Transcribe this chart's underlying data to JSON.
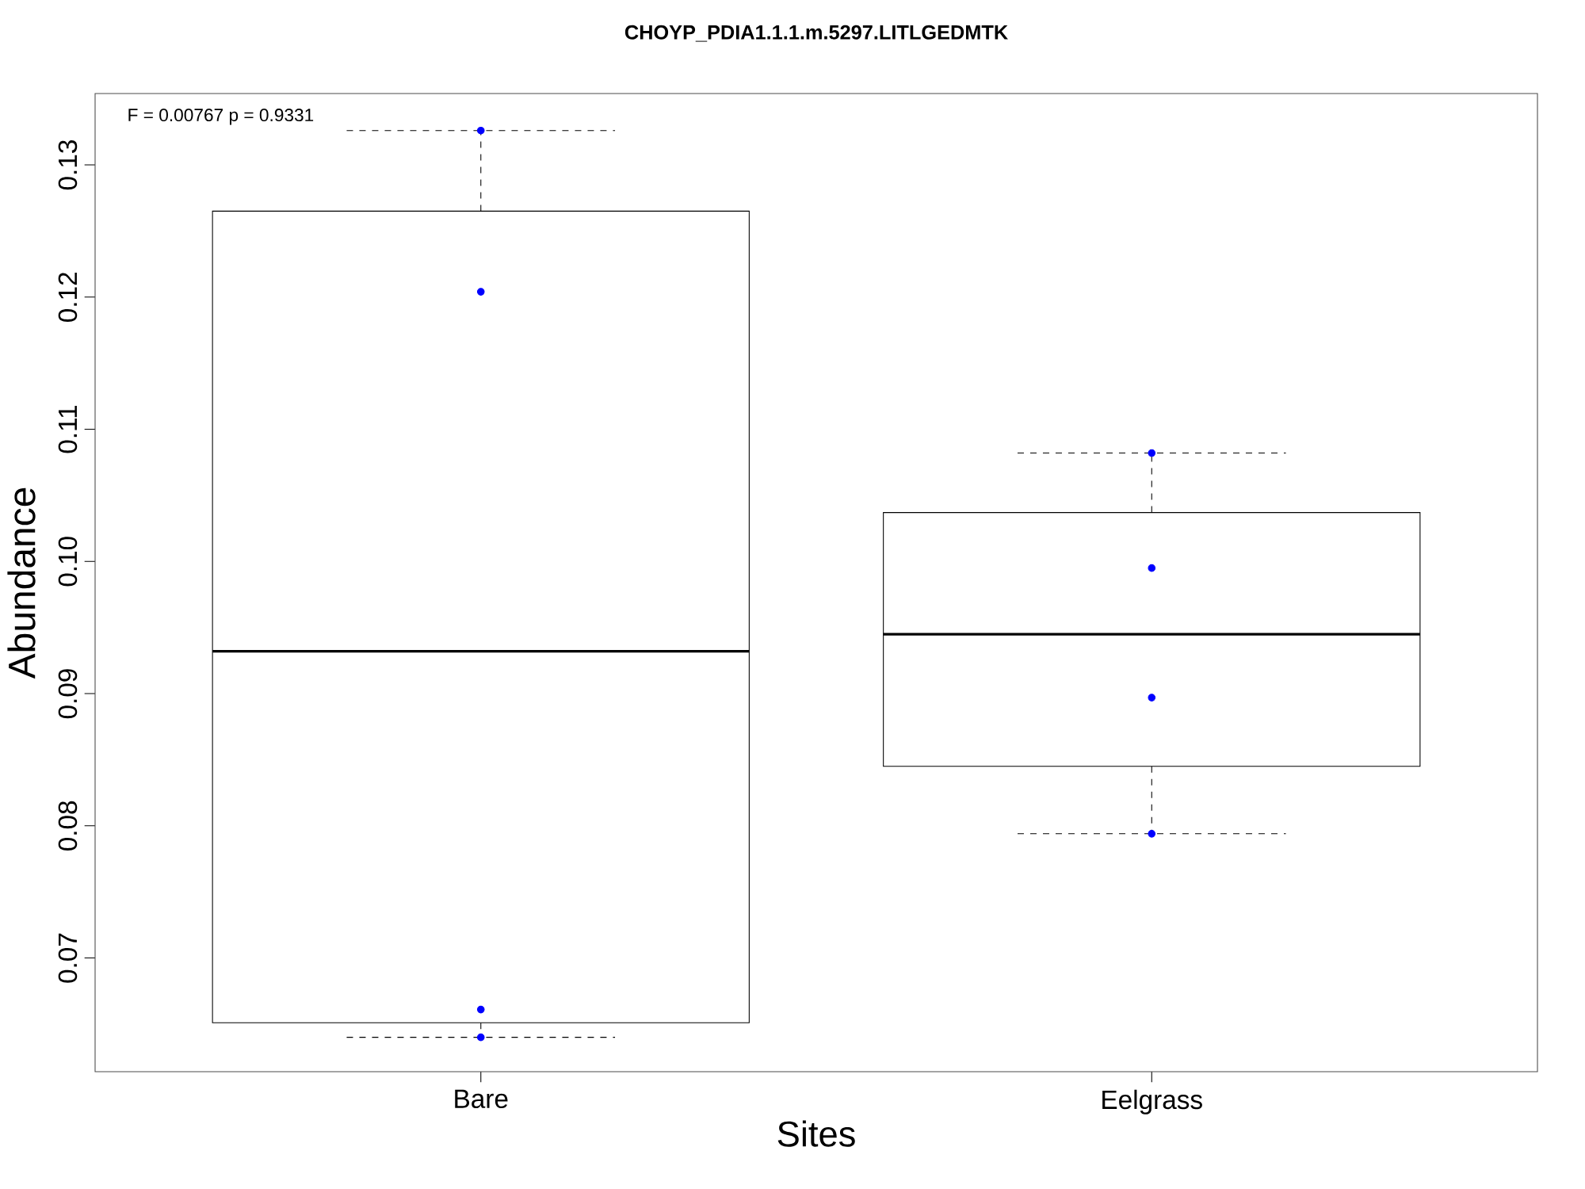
{
  "chart_data": {
    "type": "box",
    "title": "CHOYP_PDIA1.1.1.m.5297.LITLGEDMTK",
    "xlabel": "Sites",
    "ylabel": "Abundance",
    "categories": [
      "Bare",
      "Eelgrass"
    ],
    "boxes": [
      {
        "low": 0.064,
        "q1": 0.0651,
        "median": 0.0932,
        "q3": 0.1265,
        "high": 0.1326
      },
      {
        "low": 0.0794,
        "q1": 0.0845,
        "median": 0.0945,
        "q3": 0.1037,
        "high": 0.1082
      }
    ],
    "series": [
      {
        "type": "scatter",
        "color": "#0000ff",
        "x": [
          "Bare",
          "Bare",
          "Bare",
          "Bare",
          "Eelgrass",
          "Eelgrass",
          "Eelgrass",
          "Eelgrass"
        ],
        "values": [
          0.1326,
          0.1204,
          0.0661,
          0.064,
          0.1082,
          0.0995,
          0.0897,
          0.0794
        ]
      }
    ],
    "ylim": [
      0.0614,
      0.1354
    ],
    "yticks": [
      {
        "value": 0.07,
        "label": "0.07"
      },
      {
        "value": 0.08,
        "label": "0.08"
      },
      {
        "value": 0.09,
        "label": "0.09"
      },
      {
        "value": 0.1,
        "label": "0.10"
      },
      {
        "value": 0.11,
        "label": "0.11"
      },
      {
        "value": 0.12,
        "label": "0.12"
      },
      {
        "value": 0.13,
        "label": "0.13"
      }
    ],
    "annotations": [
      "F = 0.00767 p = 0.9331"
    ],
    "grid": false
  }
}
